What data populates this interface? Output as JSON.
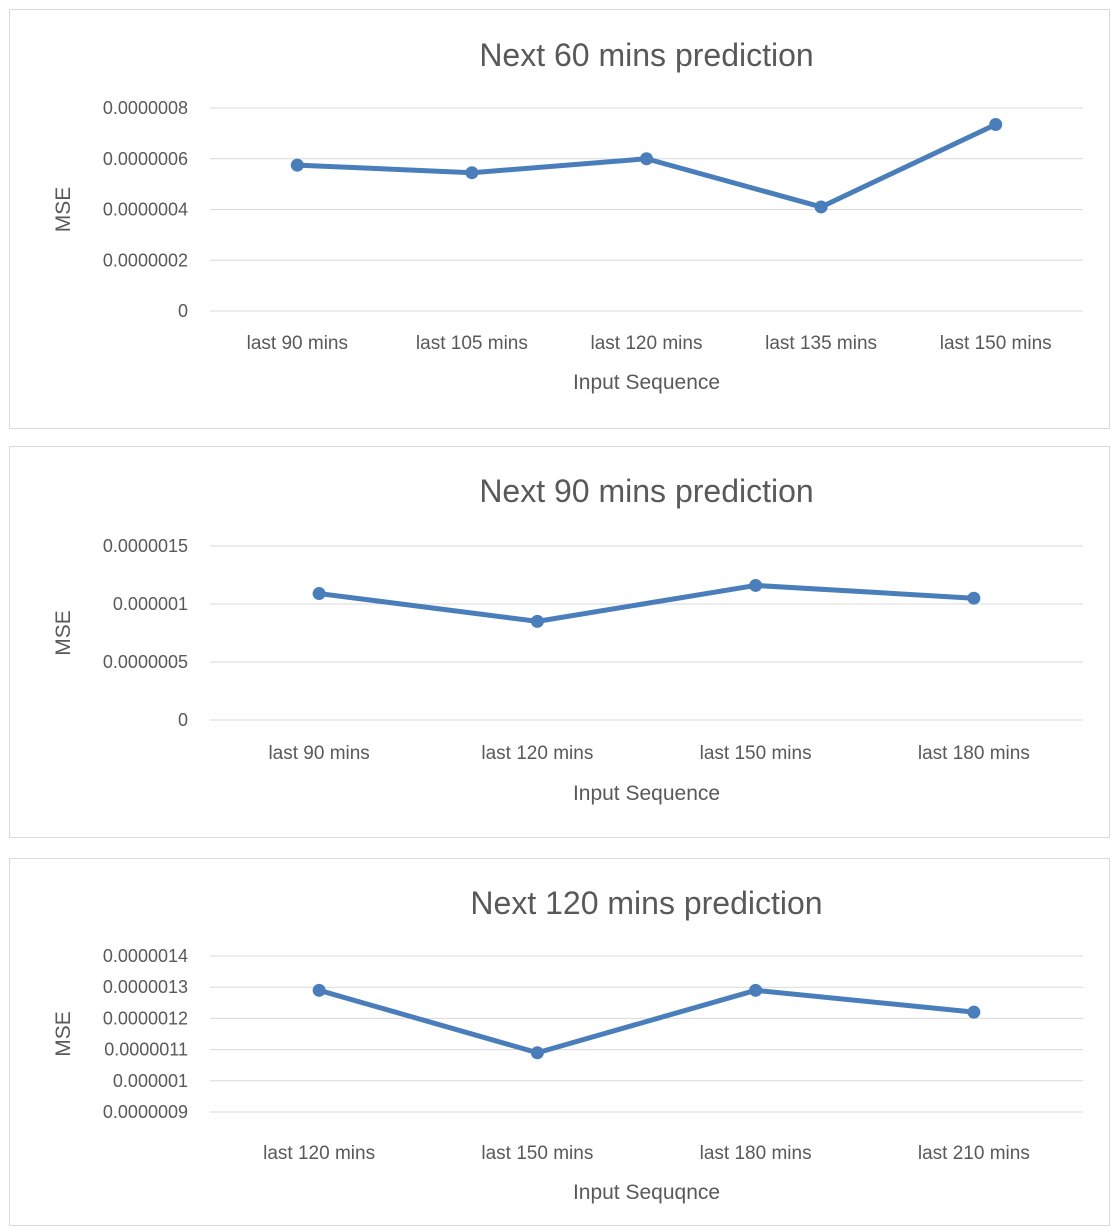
{
  "chart_data": [
    {
      "type": "line",
      "title": "Next 60 mins prediction",
      "xlabel": "Input Sequence",
      "ylabel": "MSE",
      "categories": [
        "last 90 mins",
        "last 105 mins",
        "last 120 mins",
        "last 135 mins",
        "last 150 mins"
      ],
      "series": [
        {
          "values": [
            5.75e-07,
            5.45e-07,
            6e-07,
            4.1e-07,
            7.35e-07
          ]
        }
      ],
      "yticks": [
        "0",
        "0.0000002",
        "0.0000004",
        "0.0000006",
        "0.0000008"
      ],
      "ylim": [
        0,
        8e-07
      ],
      "grid": true,
      "legend": "none",
      "color": "#4a7ebb"
    },
    {
      "type": "line",
      "title": "Next 90 mins prediction",
      "xlabel": "Input Sequence",
      "ylabel": "MSE",
      "categories": [
        "last 90 mins",
        "last 120 mins",
        "last 150 mins",
        "last 180 mins"
      ],
      "series": [
        {
          "values": [
            1.09e-06,
            8.5e-07,
            1.16e-06,
            1.05e-06
          ]
        }
      ],
      "yticks": [
        "0",
        "0.0000005",
        "0.000001",
        "0.0000015"
      ],
      "ylim": [
        0,
        1.5e-06
      ],
      "grid": true,
      "legend": "none",
      "color": "#4a7ebb"
    },
    {
      "type": "line",
      "title": "Next 120 mins prediction",
      "xlabel": "Input Sequqnce",
      "ylabel": "MSE",
      "categories": [
        "last 120 mins",
        "last 150 mins",
        "last 180 mins",
        "last 210 mins"
      ],
      "series": [
        {
          "values": [
            1.29e-06,
            1.09e-06,
            1.29e-06,
            1.22e-06
          ]
        }
      ],
      "yticks": [
        "0.0000009",
        "0.000001",
        "0.0000011",
        "0.0000012",
        "0.0000013",
        "0.0000014"
      ],
      "ylim": [
        9e-07,
        1.4e-06
      ],
      "grid": true,
      "legend": "none",
      "color": "#4a7ebb"
    }
  ]
}
